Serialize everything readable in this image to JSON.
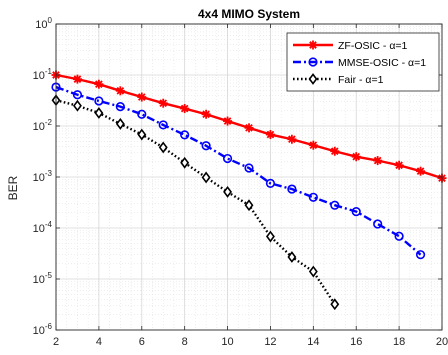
{
  "chart_data": {
    "type": "line",
    "title": "4x4 MIMO System",
    "xlabel": "",
    "ylabel": "BER",
    "xlim": [
      2,
      20
    ],
    "ylim": [
      1e-06,
      1
    ],
    "yscale": "log",
    "grid": true,
    "legend_position": "top-right",
    "x_ticks": [
      2,
      4,
      6,
      8,
      10,
      12,
      14,
      16,
      18,
      20
    ],
    "x_tick_labels": [
      "2",
      "4",
      "6",
      "8",
      "10",
      "12",
      "14",
      "16",
      "18",
      "20"
    ],
    "y_ticks": [
      1e-06,
      1e-05,
      0.0001,
      0.001,
      0.01,
      0.1,
      1
    ],
    "y_tick_labels": [
      {
        "base": "10",
        "exp": "-6"
      },
      {
        "base": "10",
        "exp": "-5"
      },
      {
        "base": "10",
        "exp": "-4"
      },
      {
        "base": "10",
        "exp": "-3"
      },
      {
        "base": "10",
        "exp": "-2"
      },
      {
        "base": "10",
        "exp": "-1"
      },
      {
        "base": "10",
        "exp": "0"
      }
    ],
    "series": [
      {
        "name": "ZF-OSIC - α=1",
        "color": "#ff0000",
        "line_style": "solid",
        "marker": "asterisk",
        "x": [
          2,
          3,
          4,
          5,
          6,
          7,
          8,
          9,
          10,
          11,
          12,
          13,
          14,
          15,
          16,
          17,
          18,
          19,
          20
        ],
        "y": [
          0.1,
          0.083,
          0.066,
          0.049,
          0.037,
          0.028,
          0.022,
          0.017,
          0.0125,
          0.0092,
          0.0068,
          0.0055,
          0.0042,
          0.0032,
          0.0025,
          0.0021,
          0.0017,
          0.0013,
          0.00095
        ]
      },
      {
        "name": "MMSE-OSIC - α=1",
        "color": "#0000ff",
        "line_style": "dashdot",
        "marker": "circle",
        "x": [
          2,
          3,
          4,
          5,
          6,
          7,
          8,
          9,
          10,
          11,
          12,
          13,
          14,
          15,
          16,
          17,
          18,
          19
        ],
        "y": [
          0.058,
          0.041,
          0.031,
          0.024,
          0.017,
          0.0105,
          0.0067,
          0.0041,
          0.0023,
          0.0015,
          0.00075,
          0.00058,
          0.0004,
          0.00028,
          0.00021,
          0.00012,
          6.9e-05,
          3e-05
        ]
      },
      {
        "name": "Fair - α=1",
        "color": "#000000",
        "line_style": "dotted",
        "marker": "diamond",
        "x": [
          2,
          3,
          4,
          5,
          6,
          7,
          8,
          9,
          10,
          11,
          12,
          13,
          14,
          15
        ],
        "y": [
          0.032,
          0.025,
          0.018,
          0.011,
          0.0068,
          0.0038,
          0.0019,
          0.00098,
          0.00051,
          0.00028,
          6.8e-05,
          2.7e-05,
          1.4e-05,
          3.2e-06
        ]
      }
    ]
  }
}
